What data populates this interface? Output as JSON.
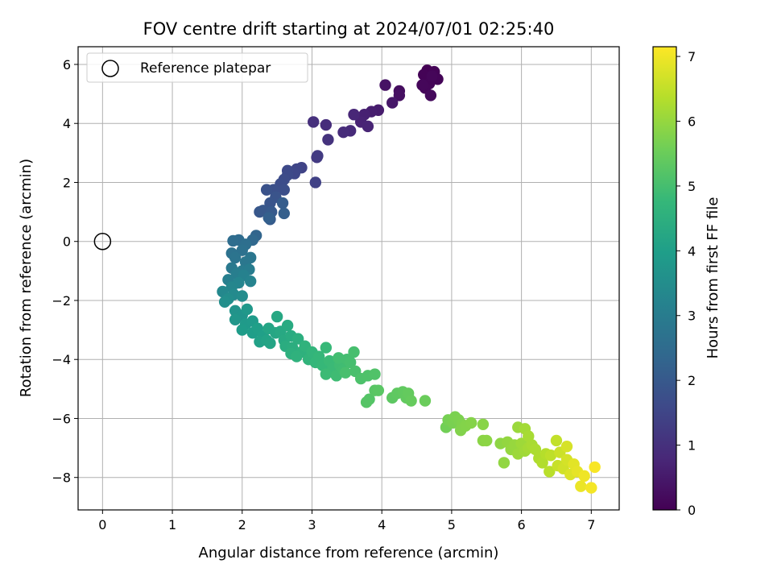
{
  "chart_data": {
    "type": "scatter",
    "title": "FOV centre drift starting at 2024/07/01 02:25:40",
    "xlabel": "Angular distance from reference (arcmin)",
    "ylabel": "Rotation from reference (arcmin)",
    "xlim": [
      -0.35,
      7.4
    ],
    "ylim": [
      -9.1,
      6.6
    ],
    "xticks": [
      0,
      1,
      2,
      3,
      4,
      5,
      6,
      7
    ],
    "yticks": [
      -8,
      -6,
      -4,
      -2,
      0,
      2,
      4,
      6
    ],
    "grid": true,
    "legend": {
      "location": "upper-left",
      "entries": [
        "Reference platepar"
      ]
    },
    "reference_point": {
      "x": 0,
      "y": 0,
      "name": "Reference platepar"
    },
    "colorbar": {
      "label": "Hours from first FF file",
      "range": [
        0,
        7.15
      ],
      "ticks": [
        0,
        1,
        2,
        3,
        4,
        5,
        6,
        7
      ],
      "colormap": "viridis",
      "stops": [
        "#440154",
        "#482878",
        "#3e4989",
        "#31688e",
        "#26828e",
        "#1f9e89",
        "#35b779",
        "#6ece58",
        "#b5de2b",
        "#fde725"
      ]
    },
    "points": [
      {
        "x": 4.65,
        "y": 5.8,
        "t": 0.0
      },
      {
        "x": 4.7,
        "y": 5.55,
        "t": 0.02
      },
      {
        "x": 4.75,
        "y": 5.75,
        "t": 0.04
      },
      {
        "x": 4.6,
        "y": 5.65,
        "t": 0.05
      },
      {
        "x": 4.8,
        "y": 5.5,
        "t": 0.06
      },
      {
        "x": 4.68,
        "y": 5.35,
        "t": 0.08
      },
      {
        "x": 4.62,
        "y": 5.2,
        "t": 0.1
      },
      {
        "x": 4.72,
        "y": 5.6,
        "t": 0.11
      },
      {
        "x": 4.58,
        "y": 5.3,
        "t": 0.13
      },
      {
        "x": 4.7,
        "y": 4.95,
        "t": 0.18
      },
      {
        "x": 4.25,
        "y": 5.1,
        "t": 0.25
      },
      {
        "x": 4.25,
        "y": 4.95,
        "t": 0.3
      },
      {
        "x": 4.05,
        "y": 5.3,
        "t": 0.35
      },
      {
        "x": 4.15,
        "y": 4.7,
        "t": 0.45
      },
      {
        "x": 3.95,
        "y": 4.45,
        "t": 0.55
      },
      {
        "x": 3.85,
        "y": 4.4,
        "t": 0.6
      },
      {
        "x": 3.75,
        "y": 4.3,
        "t": 0.66
      },
      {
        "x": 3.7,
        "y": 4.05,
        "t": 0.7
      },
      {
        "x": 3.8,
        "y": 3.9,
        "t": 0.73
      },
      {
        "x": 3.6,
        "y": 4.3,
        "t": 0.78
      },
      {
        "x": 3.55,
        "y": 3.75,
        "t": 0.85
      },
      {
        "x": 3.45,
        "y": 3.7,
        "t": 0.88
      },
      {
        "x": 3.2,
        "y": 3.95,
        "t": 0.92
      },
      {
        "x": 3.02,
        "y": 4.05,
        "t": 0.98
      },
      {
        "x": 3.23,
        "y": 3.45,
        "t": 1.05
      },
      {
        "x": 3.07,
        "y": 2.85,
        "t": 1.2
      },
      {
        "x": 3.08,
        "y": 2.9,
        "t": 1.25
      },
      {
        "x": 3.05,
        "y": 2.0,
        "t": 1.4
      },
      {
        "x": 2.85,
        "y": 2.5,
        "t": 1.45
      },
      {
        "x": 2.78,
        "y": 2.45,
        "t": 1.5
      },
      {
        "x": 2.75,
        "y": 2.3,
        "t": 1.55
      },
      {
        "x": 2.65,
        "y": 2.4,
        "t": 1.58
      },
      {
        "x": 2.65,
        "y": 2.25,
        "t": 1.62
      },
      {
        "x": 2.6,
        "y": 2.1,
        "t": 1.66
      },
      {
        "x": 2.55,
        "y": 1.95,
        "t": 1.7
      },
      {
        "x": 2.6,
        "y": 1.75,
        "t": 1.74
      },
      {
        "x": 2.45,
        "y": 1.75,
        "t": 1.78
      },
      {
        "x": 2.35,
        "y": 1.75,
        "t": 1.82
      },
      {
        "x": 2.48,
        "y": 1.5,
        "t": 1.86
      },
      {
        "x": 2.4,
        "y": 1.3,
        "t": 1.9
      },
      {
        "x": 2.25,
        "y": 1.0,
        "t": 1.95
      },
      {
        "x": 2.3,
        "y": 1.05,
        "t": 1.98
      },
      {
        "x": 2.42,
        "y": 1.0,
        "t": 2.02
      },
      {
        "x": 2.4,
        "y": 0.75,
        "t": 2.06
      },
      {
        "x": 2.58,
        "y": 1.3,
        "t": 2.1
      },
      {
        "x": 2.6,
        "y": 0.95,
        "t": 2.14
      },
      {
        "x": 2.38,
        "y": 0.8,
        "t": 2.18
      },
      {
        "x": 2.2,
        "y": 0.2,
        "t": 2.3
      },
      {
        "x": 2.15,
        "y": 0.05,
        "t": 2.4
      },
      {
        "x": 1.95,
        "y": 0.05,
        "t": 2.5
      },
      {
        "x": 1.87,
        "y": 0.02,
        "t": 2.55
      },
      {
        "x": 2.05,
        "y": -0.1,
        "t": 2.6
      },
      {
        "x": 2.0,
        "y": -0.3,
        "t": 2.65
      },
      {
        "x": 1.85,
        "y": -0.4,
        "t": 2.7
      },
      {
        "x": 1.9,
        "y": -0.55,
        "t": 2.75
      },
      {
        "x": 2.12,
        "y": -0.55,
        "t": 2.8
      },
      {
        "x": 2.05,
        "y": -0.7,
        "t": 2.85
      },
      {
        "x": 1.85,
        "y": -0.9,
        "t": 2.9
      },
      {
        "x": 2.0,
        "y": -1.0,
        "t": 2.95
      },
      {
        "x": 2.1,
        "y": -0.95,
        "t": 3.0
      },
      {
        "x": 1.92,
        "y": -1.1,
        "t": 3.05
      },
      {
        "x": 1.8,
        "y": -1.3,
        "t": 3.1
      },
      {
        "x": 2.02,
        "y": -1.15,
        "t": 3.15
      },
      {
        "x": 2.12,
        "y": -1.35,
        "t": 3.2
      },
      {
        "x": 1.95,
        "y": -1.4,
        "t": 3.25
      },
      {
        "x": 1.85,
        "y": -1.55,
        "t": 3.3
      },
      {
        "x": 1.72,
        "y": -1.7,
        "t": 3.35
      },
      {
        "x": 1.88,
        "y": -1.8,
        "t": 3.4
      },
      {
        "x": 2.0,
        "y": -1.85,
        "t": 3.45
      },
      {
        "x": 1.8,
        "y": -1.95,
        "t": 3.5
      },
      {
        "x": 1.75,
        "y": -2.05,
        "t": 3.55
      },
      {
        "x": 1.9,
        "y": -2.35,
        "t": 3.65
      },
      {
        "x": 2.0,
        "y": -2.5,
        "t": 3.7
      },
      {
        "x": 1.9,
        "y": -2.65,
        "t": 3.75
      },
      {
        "x": 2.07,
        "y": -2.3,
        "t": 3.8
      },
      {
        "x": 2.05,
        "y": -2.8,
        "t": 3.85
      },
      {
        "x": 2.15,
        "y": -2.7,
        "t": 3.88
      },
      {
        "x": 2.0,
        "y": -3.0,
        "t": 3.92
      },
      {
        "x": 2.15,
        "y": -3.1,
        "t": 3.96
      },
      {
        "x": 2.22,
        "y": -2.95,
        "t": 4.0
      },
      {
        "x": 2.3,
        "y": -3.2,
        "t": 4.04
      },
      {
        "x": 2.25,
        "y": -3.4,
        "t": 4.08
      },
      {
        "x": 2.35,
        "y": -3.35,
        "t": 4.12
      },
      {
        "x": 2.4,
        "y": -3.45,
        "t": 4.15
      },
      {
        "x": 2.38,
        "y": -2.95,
        "t": 4.18
      },
      {
        "x": 2.48,
        "y": -3.1,
        "t": 4.22
      },
      {
        "x": 2.5,
        "y": -2.55,
        "t": 4.25
      },
      {
        "x": 2.55,
        "y": -3.05,
        "t": 4.28
      },
      {
        "x": 2.6,
        "y": -3.35,
        "t": 4.32
      },
      {
        "x": 2.65,
        "y": -2.85,
        "t": 4.35
      },
      {
        "x": 2.7,
        "y": -3.2,
        "t": 4.38
      },
      {
        "x": 2.62,
        "y": -3.55,
        "t": 4.42
      },
      {
        "x": 2.72,
        "y": -3.6,
        "t": 4.45
      },
      {
        "x": 2.8,
        "y": -3.3,
        "t": 4.48
      },
      {
        "x": 2.7,
        "y": -3.8,
        "t": 4.52
      },
      {
        "x": 2.85,
        "y": -3.75,
        "t": 4.55
      },
      {
        "x": 2.78,
        "y": -3.9,
        "t": 4.58
      },
      {
        "x": 2.9,
        "y": -3.55,
        "t": 4.62
      },
      {
        "x": 2.95,
        "y": -4.0,
        "t": 4.65
      },
      {
        "x": 3.0,
        "y": -3.75,
        "t": 4.68
      },
      {
        "x": 3.05,
        "y": -4.1,
        "t": 4.72
      },
      {
        "x": 3.1,
        "y": -3.9,
        "t": 4.75
      },
      {
        "x": 3.15,
        "y": -4.2,
        "t": 4.78
      },
      {
        "x": 3.2,
        "y": -3.6,
        "t": 4.8
      },
      {
        "x": 3.25,
        "y": -4.05,
        "t": 4.83
      },
      {
        "x": 3.3,
        "y": -4.3,
        "t": 4.85
      },
      {
        "x": 3.2,
        "y": -4.5,
        "t": 4.87
      },
      {
        "x": 3.35,
        "y": -4.55,
        "t": 4.9
      },
      {
        "x": 3.4,
        "y": -4.2,
        "t": 4.92
      },
      {
        "x": 3.45,
        "y": -4.35,
        "t": 4.94
      },
      {
        "x": 3.38,
        "y": -3.95,
        "t": 4.96
      },
      {
        "x": 3.5,
        "y": -4.0,
        "t": 4.98
      },
      {
        "x": 3.55,
        "y": -4.1,
        "t": 5.0
      },
      {
        "x": 3.6,
        "y": -3.75,
        "t": 5.02
      },
      {
        "x": 3.48,
        "y": -4.45,
        "t": 5.04
      },
      {
        "x": 3.62,
        "y": -4.4,
        "t": 5.06
      },
      {
        "x": 3.7,
        "y": -4.65,
        "t": 5.1
      },
      {
        "x": 3.8,
        "y": -4.55,
        "t": 5.12
      },
      {
        "x": 3.9,
        "y": -4.5,
        "t": 5.15
      },
      {
        "x": 3.82,
        "y": -5.35,
        "t": 5.2
      },
      {
        "x": 3.78,
        "y": -5.45,
        "t": 5.22
      },
      {
        "x": 3.9,
        "y": -5.05,
        "t": 5.25
      },
      {
        "x": 3.95,
        "y": -5.05,
        "t": 5.28
      },
      {
        "x": 4.15,
        "y": -5.3,
        "t": 5.32
      },
      {
        "x": 4.22,
        "y": -5.15,
        "t": 5.35
      },
      {
        "x": 4.3,
        "y": -5.1,
        "t": 5.38
      },
      {
        "x": 4.35,
        "y": -5.3,
        "t": 5.4
      },
      {
        "x": 4.38,
        "y": -5.15,
        "t": 5.42
      },
      {
        "x": 4.42,
        "y": -5.4,
        "t": 5.45
      },
      {
        "x": 4.62,
        "y": -5.4,
        "t": 5.5
      },
      {
        "x": 4.92,
        "y": -6.3,
        "t": 5.6
      },
      {
        "x": 4.95,
        "y": -6.05,
        "t": 5.65
      },
      {
        "x": 5.02,
        "y": -6.15,
        "t": 5.68
      },
      {
        "x": 5.05,
        "y": -5.95,
        "t": 5.7
      },
      {
        "x": 5.1,
        "y": -6.05,
        "t": 5.72
      },
      {
        "x": 5.15,
        "y": -6.2,
        "t": 5.75
      },
      {
        "x": 5.13,
        "y": -6.4,
        "t": 5.78
      },
      {
        "x": 5.2,
        "y": -6.25,
        "t": 5.8
      },
      {
        "x": 5.28,
        "y": -6.15,
        "t": 5.82
      },
      {
        "x": 5.45,
        "y": -6.2,
        "t": 5.85
      },
      {
        "x": 5.45,
        "y": -6.75,
        "t": 5.88
      },
      {
        "x": 5.5,
        "y": -6.75,
        "t": 5.9
      },
      {
        "x": 5.7,
        "y": -6.85,
        "t": 5.92
      },
      {
        "x": 5.75,
        "y": -7.5,
        "t": 5.95
      },
      {
        "x": 5.8,
        "y": -6.8,
        "t": 5.98
      },
      {
        "x": 5.85,
        "y": -7.05,
        "t": 6.0
      },
      {
        "x": 5.9,
        "y": -6.9,
        "t": 6.02
      },
      {
        "x": 5.95,
        "y": -6.3,
        "t": 6.05
      },
      {
        "x": 5.95,
        "y": -7.2,
        "t": 6.08
      },
      {
        "x": 6.0,
        "y": -6.85,
        "t": 6.1
      },
      {
        "x": 6.05,
        "y": -7.1,
        "t": 6.12
      },
      {
        "x": 6.05,
        "y": -6.35,
        "t": 6.15
      },
      {
        "x": 6.1,
        "y": -7.0,
        "t": 6.18
      },
      {
        "x": 6.1,
        "y": -6.6,
        "t": 6.2
      },
      {
        "x": 6.15,
        "y": -6.9,
        "t": 6.22
      },
      {
        "x": 6.2,
        "y": -7.05,
        "t": 6.25
      },
      {
        "x": 6.25,
        "y": -7.35,
        "t": 6.28
      },
      {
        "x": 6.3,
        "y": -7.5,
        "t": 6.32
      },
      {
        "x": 6.35,
        "y": -7.2,
        "t": 6.35
      },
      {
        "x": 6.4,
        "y": -7.8,
        "t": 6.4
      },
      {
        "x": 6.42,
        "y": -7.25,
        "t": 6.45
      },
      {
        "x": 6.5,
        "y": -6.75,
        "t": 6.5
      },
      {
        "x": 6.52,
        "y": -7.6,
        "t": 6.55
      },
      {
        "x": 6.55,
        "y": -7.15,
        "t": 6.6
      },
      {
        "x": 6.6,
        "y": -7.7,
        "t": 6.65
      },
      {
        "x": 6.65,
        "y": -7.4,
        "t": 6.7
      },
      {
        "x": 6.65,
        "y": -6.95,
        "t": 6.72
      },
      {
        "x": 6.7,
        "y": -7.9,
        "t": 6.78
      },
      {
        "x": 6.75,
        "y": -7.55,
        "t": 6.85
      },
      {
        "x": 6.8,
        "y": -7.8,
        "t": 6.9
      },
      {
        "x": 6.85,
        "y": -8.3,
        "t": 6.95
      },
      {
        "x": 6.9,
        "y": -7.95,
        "t": 7.0
      },
      {
        "x": 7.0,
        "y": -8.35,
        "t": 7.05
      },
      {
        "x": 7.05,
        "y": -7.65,
        "t": 7.1
      }
    ]
  }
}
